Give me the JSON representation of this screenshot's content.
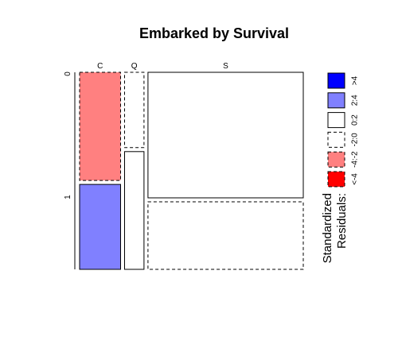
{
  "chart_data": {
    "type": "mosaic",
    "title": "Embarked by Survival",
    "x_variable_levels": [
      "C",
      "Q",
      "S"
    ],
    "y_variable_levels": [
      "0",
      "1"
    ],
    "column_proportions": [
      0.19,
      0.09,
      0.72
    ],
    "survival_rate_by_column": [
      0.44,
      0.61,
      0.35
    ],
    "cells": [
      {
        "embarked": "C",
        "survived": "0",
        "residual_class": "-4:-2",
        "fill": "#FF8080",
        "border": "dashed"
      },
      {
        "embarked": "C",
        "survived": "1",
        "residual_class": "2:4",
        "fill": "#8080FF",
        "border": "solid"
      },
      {
        "embarked": "Q",
        "survived": "0",
        "residual_class": "-2:0",
        "fill": "#FFFFFF",
        "border": "dashed"
      },
      {
        "embarked": "Q",
        "survived": "1",
        "residual_class": "0:2",
        "fill": "#FFFFFF",
        "border": "solid"
      },
      {
        "embarked": "S",
        "survived": "0",
        "residual_class": "0:2",
        "fill": "#FFFFFF",
        "border": "solid"
      },
      {
        "embarked": "S",
        "survived": "1",
        "residual_class": "-2:0",
        "fill": "#FFFFFF",
        "border": "dashed"
      }
    ],
    "legend": {
      "title_lines": [
        "Standardized",
        "Residuals:"
      ],
      "items": [
        {
          "label": ">4",
          "fill": "#0000FF",
          "border": "solid"
        },
        {
          "label": "2:4",
          "fill": "#8080FF",
          "border": "solid"
        },
        {
          "label": "0:2",
          "fill": "#FFFFFF",
          "border": "solid"
        },
        {
          "label": "-2:0",
          "fill": "#FFFFFF",
          "border": "dashed"
        },
        {
          "label": "-4:-2",
          "fill": "#FF8080",
          "border": "dashed"
        },
        {
          "label": "<-4",
          "fill": "#FF0000",
          "border": "dashed"
        }
      ]
    }
  }
}
